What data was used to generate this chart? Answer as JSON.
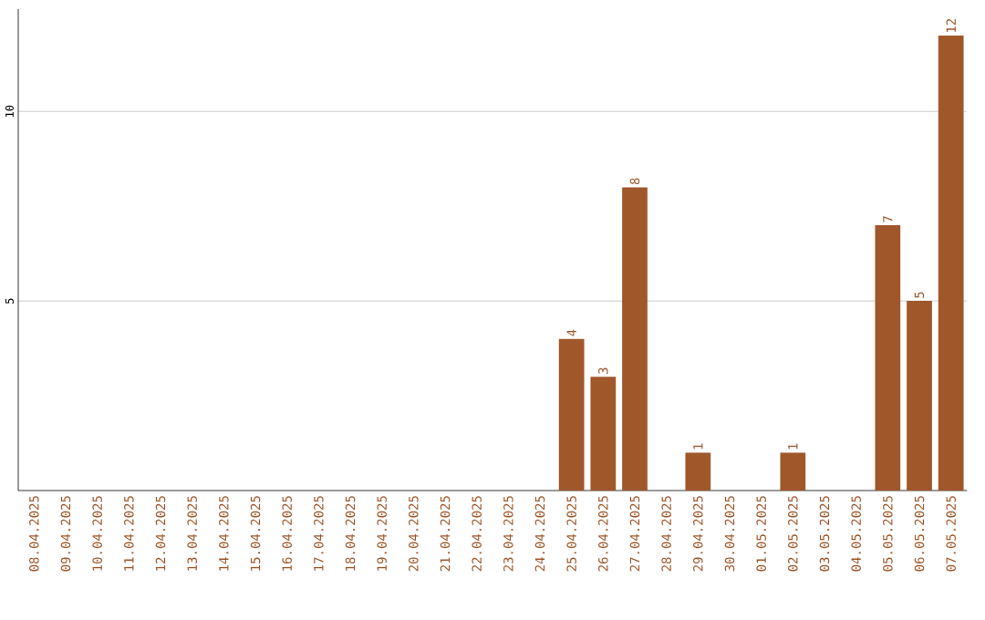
{
  "chart_data": {
    "type": "bar",
    "categories": [
      "08.04.2025",
      "09.04.2025",
      "10.04.2025",
      "11.04.2025",
      "12.04.2025",
      "13.04.2025",
      "14.04.2025",
      "15.04.2025",
      "16.04.2025",
      "17.04.2025",
      "18.04.2025",
      "19.04.2025",
      "20.04.2025",
      "21.04.2025",
      "22.04.2025",
      "23.04.2025",
      "24.04.2025",
      "25.04.2025",
      "26.04.2025",
      "27.04.2025",
      "28.04.2025",
      "29.04.2025",
      "30.04.2025",
      "01.05.2025",
      "02.05.2025",
      "03.05.2025",
      "04.05.2025",
      "05.05.2025",
      "06.05.2025",
      "07.05.2025"
    ],
    "values": [
      0,
      0,
      0,
      0,
      0,
      0,
      0,
      0,
      0,
      0,
      0,
      0,
      0,
      0,
      0,
      0,
      0,
      4,
      3,
      8,
      0,
      1,
      0,
      0,
      1,
      0,
      0,
      7,
      5,
      12
    ],
    "value_labels": [
      null,
      null,
      null,
      null,
      null,
      null,
      null,
      null,
      null,
      null,
      null,
      null,
      null,
      null,
      null,
      null,
      null,
      "4",
      "3",
      "8",
      null,
      "1",
      null,
      null,
      "1",
      null,
      null,
      "7",
      "5",
      "12"
    ],
    "color": "#a0572a",
    "ylim": [
      0,
      12.7
    ],
    "yticks": [
      5,
      10
    ],
    "grid": "y"
  }
}
